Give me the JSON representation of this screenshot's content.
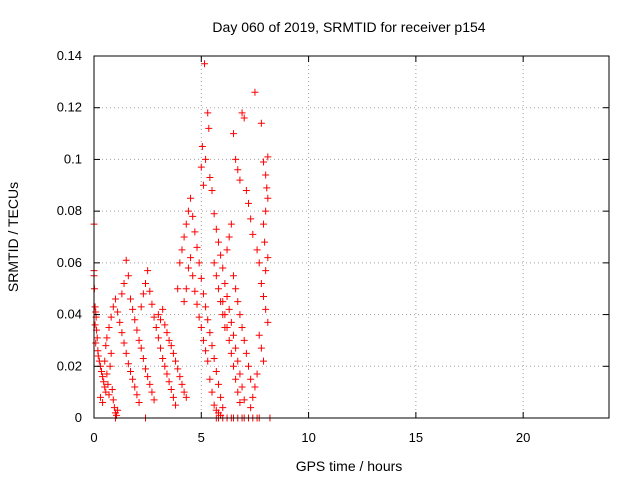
{
  "chart_data": {
    "type": "scatter",
    "title": "Day 060 of 2019, SRMTID for receiver p154",
    "xlabel": "GPS time / hours",
    "ylabel": "SRMTID / TECUs",
    "xlim": [
      0,
      24
    ],
    "ylim": [
      0,
      0.14
    ],
    "xticks": [
      0,
      5,
      10,
      15,
      20
    ],
    "yticks": [
      0,
      0.02,
      0.04,
      0.06,
      0.08,
      0.1,
      0.12,
      0.14
    ],
    "grid": true,
    "marker": "plus",
    "color": "#ff0000",
    "series": [
      {
        "name": "SRMTID",
        "points": [
          [
            0.0,
            0.075
          ],
          [
            0.0,
            0.057
          ],
          [
            0.0,
            0.055
          ],
          [
            0.02,
            0.05
          ],
          [
            0.05,
            0.043
          ],
          [
            0.08,
            0.041
          ],
          [
            0.1,
            0.039
          ],
          [
            0.05,
            0.036
          ],
          [
            0.12,
            0.034
          ],
          [
            0.15,
            0.031
          ],
          [
            0.08,
            0.029
          ],
          [
            0.18,
            0.026
          ],
          [
            0.2,
            0.024
          ],
          [
            0.25,
            0.022
          ],
          [
            0.3,
            0.02
          ],
          [
            0.35,
            0.018
          ],
          [
            0.4,
            0.016
          ],
          [
            0.45,
            0.014
          ],
          [
            0.5,
            0.012
          ],
          [
            0.55,
            0.01
          ],
          [
            0.3,
            0.008
          ],
          [
            0.4,
            0.006
          ],
          [
            0.6,
            0.017
          ],
          [
            0.65,
            0.013
          ],
          [
            0.7,
            0.009
          ],
          [
            0.75,
            0.02
          ],
          [
            0.8,
            0.025
          ],
          [
            0.85,
            0.011
          ],
          [
            0.9,
            0.007
          ],
          [
            0.95,
            0.004
          ],
          [
            1.0,
            0.002
          ],
          [
            1.05,
            0.001
          ],
          [
            1.1,
            0.003
          ],
          [
            0.5,
            0.022
          ],
          [
            0.55,
            0.028
          ],
          [
            0.6,
            0.031
          ],
          [
            0.7,
            0.035
          ],
          [
            0.8,
            0.039
          ],
          [
            0.9,
            0.043
          ],
          [
            1.0,
            0.046
          ],
          [
            1.1,
            0.041
          ],
          [
            1.2,
            0.037
          ],
          [
            1.3,
            0.033
          ],
          [
            1.4,
            0.029
          ],
          [
            1.5,
            0.025
          ],
          [
            1.6,
            0.021
          ],
          [
            1.7,
            0.018
          ],
          [
            1.8,
            0.015
          ],
          [
            1.9,
            0.012
          ],
          [
            2.0,
            0.009
          ],
          [
            2.1,
            0.006
          ],
          [
            1.3,
            0.048
          ],
          [
            1.4,
            0.052
          ],
          [
            1.5,
            0.061
          ],
          [
            1.6,
            0.055
          ],
          [
            1.7,
            0.046
          ],
          [
            1.8,
            0.042
          ],
          [
            1.9,
            0.038
          ],
          [
            2.0,
            0.034
          ],
          [
            2.1,
            0.03
          ],
          [
            2.2,
            0.027
          ],
          [
            2.3,
            0.023
          ],
          [
            2.4,
            0.019
          ],
          [
            2.5,
            0.016
          ],
          [
            2.6,
            0.013
          ],
          [
            2.7,
            0.01
          ],
          [
            2.8,
            0.007
          ],
          [
            2.2,
            0.043
          ],
          [
            2.3,
            0.048
          ],
          [
            2.4,
            0.052
          ],
          [
            2.5,
            0.057
          ],
          [
            2.6,
            0.049
          ],
          [
            2.7,
            0.044
          ],
          [
            2.8,
            0.039
          ],
          [
            2.9,
            0.035
          ],
          [
            3.0,
            0.031
          ],
          [
            3.1,
            0.027
          ],
          [
            3.2,
            0.023
          ],
          [
            3.3,
            0.02
          ],
          [
            3.4,
            0.017
          ],
          [
            3.5,
            0.014
          ],
          [
            3.6,
            0.011
          ],
          [
            3.7,
            0.008
          ],
          [
            3.8,
            0.005
          ],
          [
            3.0,
            0.04
          ],
          [
            3.1,
            0.038
          ],
          [
            3.2,
            0.042
          ],
          [
            3.3,
            0.036
          ],
          [
            3.4,
            0.033
          ],
          [
            3.5,
            0.03
          ],
          [
            3.6,
            0.028
          ],
          [
            3.7,
            0.025
          ],
          [
            3.8,
            0.022
          ],
          [
            3.9,
            0.019
          ],
          [
            4.0,
            0.016
          ],
          [
            4.1,
            0.013
          ],
          [
            4.2,
            0.01
          ],
          [
            4.3,
            0.008
          ],
          [
            3.9,
            0.05
          ],
          [
            4.0,
            0.06
          ],
          [
            4.1,
            0.065
          ],
          [
            4.2,
            0.07
          ],
          [
            4.3,
            0.075
          ],
          [
            4.4,
            0.08
          ],
          [
            4.5,
            0.085
          ],
          [
            4.6,
            0.078
          ],
          [
            4.7,
            0.072
          ],
          [
            4.8,
            0.066
          ],
          [
            4.9,
            0.06
          ],
          [
            5.0,
            0.054
          ],
          [
            5.1,
            0.048
          ],
          [
            5.2,
            0.043
          ],
          [
            5.3,
            0.038
          ],
          [
            5.4,
            0.033
          ],
          [
            5.5,
            0.028
          ],
          [
            5.6,
            0.023
          ],
          [
            5.7,
            0.018
          ],
          [
            5.8,
            0.013
          ],
          [
            5.9,
            0.008
          ],
          [
            6.0,
            0.004
          ],
          [
            4.2,
            0.045
          ],
          [
            4.3,
            0.05
          ],
          [
            4.4,
            0.058
          ],
          [
            4.5,
            0.062
          ],
          [
            4.6,
            0.055
          ],
          [
            4.7,
            0.049
          ],
          [
            4.8,
            0.044
          ],
          [
            4.9,
            0.039
          ],
          [
            5.0,
            0.035
          ],
          [
            5.1,
            0.03
          ],
          [
            5.2,
            0.026
          ],
          [
            5.3,
            0.022
          ],
          [
            5.0,
            0.097
          ],
          [
            5.05,
            0.105
          ],
          [
            5.1,
            0.09
          ],
          [
            5.15,
            0.137
          ],
          [
            5.2,
            0.1
          ],
          [
            5.3,
            0.118
          ],
          [
            5.35,
            0.112
          ],
          [
            5.4,
            0.093
          ],
          [
            5.5,
            0.088
          ],
          [
            5.6,
            0.079
          ],
          [
            5.7,
            0.073
          ],
          [
            5.8,
            0.068
          ],
          [
            5.9,
            0.063
          ],
          [
            6.0,
            0.058
          ],
          [
            6.1,
            0.052
          ],
          [
            6.2,
            0.047
          ],
          [
            6.3,
            0.042
          ],
          [
            6.4,
            0.037
          ],
          [
            6.5,
            0.032
          ],
          [
            6.6,
            0.027
          ],
          [
            6.7,
            0.022
          ],
          [
            6.8,
            0.017
          ],
          [
            6.9,
            0.012
          ],
          [
            7.0,
            0.007
          ],
          [
            6.5,
            0.11
          ],
          [
            6.6,
            0.1
          ],
          [
            6.7,
            0.096
          ],
          [
            6.8,
            0.092
          ],
          [
            6.9,
            0.118
          ],
          [
            7.0,
            0.116
          ],
          [
            7.1,
            0.088
          ],
          [
            7.2,
            0.083
          ],
          [
            7.3,
            0.077
          ],
          [
            7.4,
            0.071
          ],
          [
            7.5,
            0.126
          ],
          [
            7.6,
            0.065
          ],
          [
            7.7,
            0.06
          ],
          [
            7.8,
            0.114
          ],
          [
            7.9,
            0.099
          ],
          [
            8.0,
            0.094
          ],
          [
            8.1,
            0.101
          ],
          [
            8.05,
            0.089
          ],
          [
            8.1,
            0.085
          ],
          [
            8.0,
            0.08
          ],
          [
            7.9,
            0.075
          ],
          [
            7.95,
            0.068
          ],
          [
            8.1,
            0.062
          ],
          [
            8.0,
            0.057
          ],
          [
            7.8,
            0.052
          ],
          [
            7.9,
            0.047
          ],
          [
            8.0,
            0.042
          ],
          [
            8.1,
            0.037
          ],
          [
            7.7,
            0.032
          ],
          [
            7.8,
            0.027
          ],
          [
            7.9,
            0.022
          ],
          [
            7.6,
            0.017
          ],
          [
            7.5,
            0.012
          ],
          [
            7.4,
            0.008
          ],
          [
            7.3,
            0.004
          ],
          [
            6.2,
            0.065
          ],
          [
            6.3,
            0.07
          ],
          [
            6.4,
            0.075
          ],
          [
            6.5,
            0.055
          ],
          [
            6.6,
            0.05
          ],
          [
            6.7,
            0.045
          ],
          [
            6.8,
            0.04
          ],
          [
            6.9,
            0.035
          ],
          [
            7.0,
            0.03
          ],
          [
            7.1,
            0.025
          ],
          [
            7.2,
            0.02
          ],
          [
            7.3,
            0.015
          ],
          [
            6.0,
            0.045
          ],
          [
            6.1,
            0.04
          ],
          [
            6.2,
            0.035
          ],
          [
            6.3,
            0.03
          ],
          [
            6.4,
            0.025
          ],
          [
            6.5,
            0.02
          ],
          [
            6.6,
            0.015
          ],
          [
            6.7,
            0.01
          ],
          [
            6.8,
            0.006
          ],
          [
            5.6,
            0.06
          ],
          [
            5.7,
            0.055
          ],
          [
            5.8,
            0.05
          ],
          [
            5.9,
            0.045
          ],
          [
            6.0,
            0.04
          ],
          [
            6.1,
            0.035
          ],
          [
            5.4,
            0.015
          ],
          [
            5.5,
            0.01
          ],
          [
            5.6,
            0.005
          ],
          [
            5.7,
            0.003
          ],
          [
            5.8,
            0.002
          ],
          [
            5.9,
            0.001
          ],
          [
            6.0,
            0.0
          ],
          [
            5.7,
            0.0
          ],
          [
            5.8,
            0.0
          ],
          [
            6.2,
            0.0
          ],
          [
            6.4,
            0.0
          ],
          [
            6.5,
            0.0
          ],
          [
            6.7,
            0.0
          ],
          [
            6.9,
            0.0
          ],
          [
            7.0,
            0.0
          ],
          [
            7.2,
            0.0
          ],
          [
            7.4,
            0.0
          ],
          [
            7.6,
            0.0
          ],
          [
            7.7,
            0.0
          ],
          [
            8.2,
            0.0
          ],
          [
            2.4,
            0.0
          ],
          [
            1.0,
            0.0
          ]
        ]
      }
    ]
  }
}
